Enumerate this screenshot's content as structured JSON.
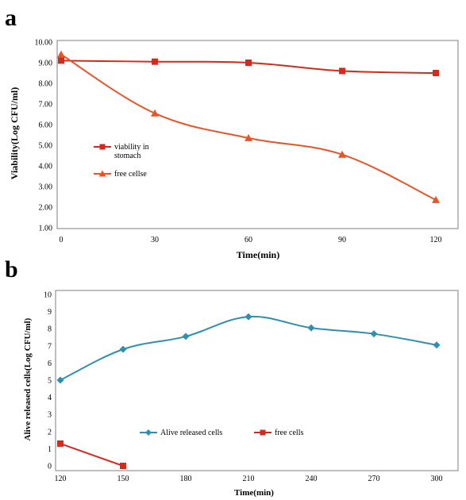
{
  "chart_data": [
    {
      "panel_label": "a",
      "type": "line",
      "xlabel": "Time(min)",
      "ylabel": "Viability(Log CFU/ml)",
      "x": [
        0,
        30,
        60,
        90,
        120
      ],
      "x_tick_labels": [
        "0",
        "30",
        "60",
        "90",
        "120"
      ],
      "y_tick_labels": [
        "1.00",
        "2.00",
        "3.00",
        "4.00",
        "5.00",
        "6.00",
        "7.00",
        "8.00",
        "9.00",
        "10.00"
      ],
      "ylim": [
        1,
        10
      ],
      "xlim": [
        0,
        120
      ],
      "grid": false,
      "legend_placement": "left",
      "series": [
        {
          "name": "viability in stomach",
          "marker": "square",
          "color": "#d42a1e",
          "values": [
            9.1,
            9.05,
            9.0,
            8.6,
            8.5
          ]
        },
        {
          "name": "free cellse",
          "marker": "triangle",
          "color": "#e8542a",
          "values": [
            9.4,
            6.55,
            5.35,
            4.55,
            2.35
          ]
        }
      ]
    },
    {
      "panel_label": "b",
      "type": "line",
      "xlabel": "Time(min)",
      "ylabel": "Alive released cells(Log CFU/ml)",
      "x": [
        120,
        150,
        180,
        210,
        240,
        270,
        300
      ],
      "x_tick_labels": [
        "120",
        "150",
        "180",
        "210",
        "240",
        "270",
        "300"
      ],
      "y_tick_labels": [
        "0",
        "1",
        "2",
        "3",
        "4",
        "5",
        "6",
        "7",
        "8",
        "9",
        "10"
      ],
      "ylim": [
        0,
        10
      ],
      "xlim": [
        120,
        300
      ],
      "grid": false,
      "legend_placement": "bottom-center",
      "series": [
        {
          "name": "Alive released cells",
          "marker": "diamond",
          "color": "#2e8fb0",
          "x": [
            120,
            150,
            180,
            210,
            240,
            270,
            300
          ],
          "values": [
            5.0,
            6.8,
            7.55,
            8.7,
            8.05,
            7.7,
            7.05
          ]
        },
        {
          "name": "free cells",
          "marker": "square",
          "color": "#d42a1e",
          "x": [
            120,
            150
          ],
          "values": [
            1.3,
            0.0
          ]
        }
      ]
    }
  ]
}
